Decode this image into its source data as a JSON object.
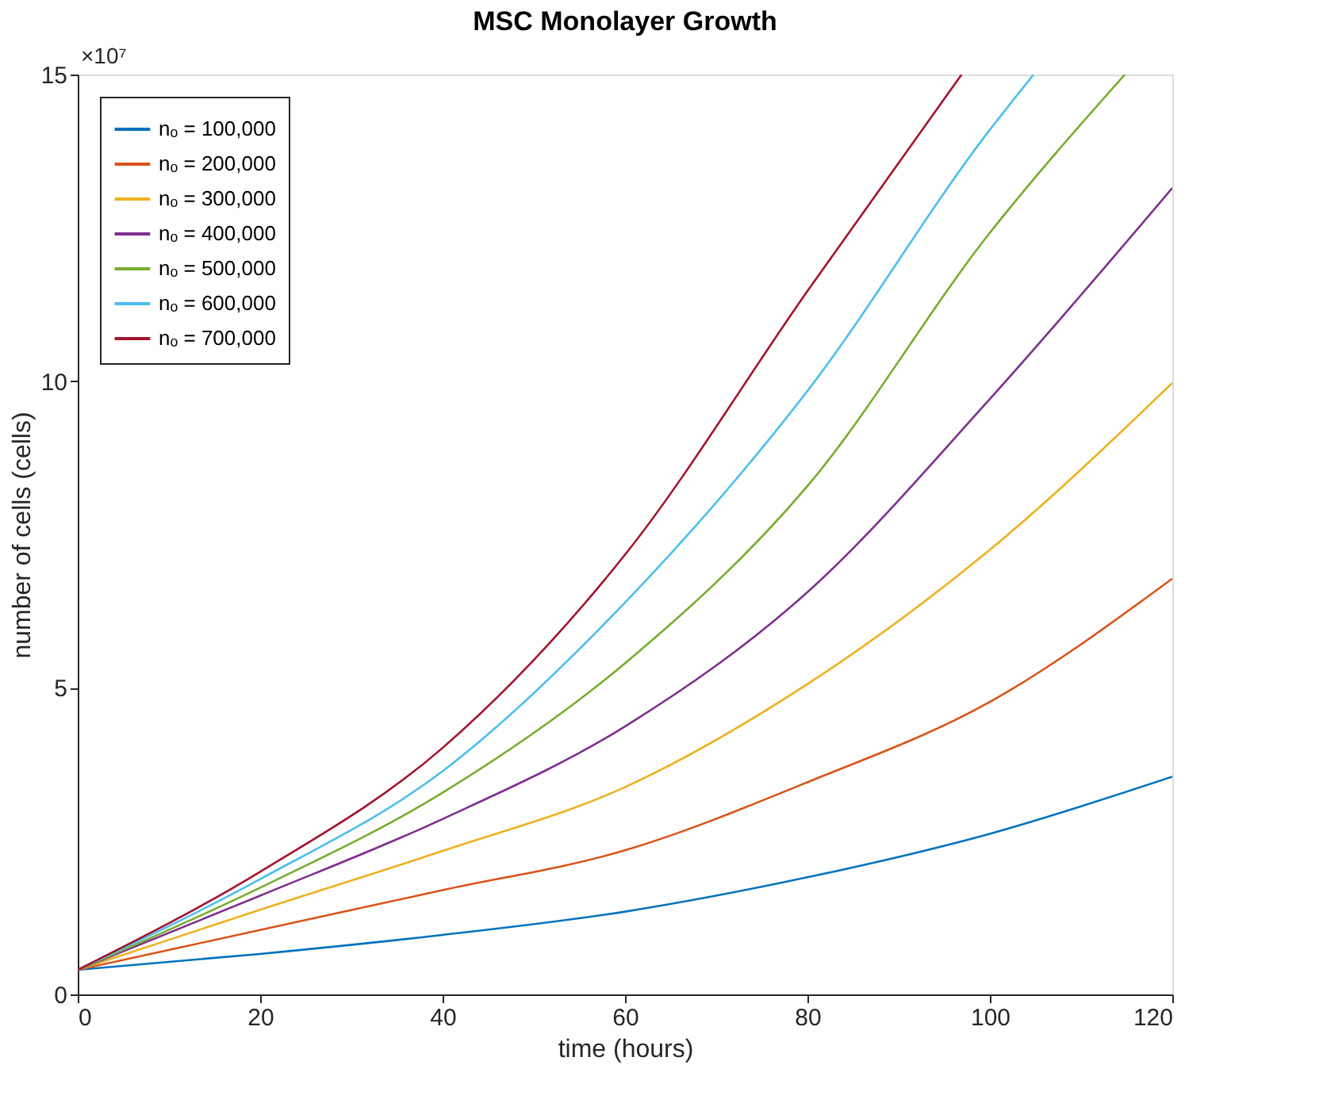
{
  "chart_data": {
    "type": "line",
    "title": "MSC Monolayer Growth",
    "xlabel": "time (hours)",
    "ylabel": "number of cells (cells)",
    "annotations": [
      "×10⁷"
    ],
    "xlim": [
      0,
      120
    ],
    "xticks": [
      0,
      20,
      40,
      60,
      80,
      100,
      120
    ],
    "ylim": [
      0,
      15
    ],
    "yticks": [
      0,
      5,
      10,
      15
    ],
    "grid": false,
    "legend": "top left",
    "marker": "none",
    "line_style": "solid",
    "series": [
      {
        "name": "nₒ = 100,000",
        "color": "#0072bd",
        "x": [
          0,
          20,
          40,
          60,
          80,
          100,
          120
        ],
        "values": [
          0.4,
          0.66,
          0.97,
          1.35,
          1.91,
          2.62,
          3.55
        ]
      },
      {
        "name": "nₒ = 200,000",
        "color": "#d95319",
        "x": [
          0,
          20,
          40,
          60,
          80,
          100,
          120
        ],
        "values": [
          0.4,
          1.05,
          1.7,
          2.35,
          3.46,
          4.77,
          6.78
        ]
      },
      {
        "name": "nₒ = 300,000",
        "color": "#edb120",
        "x": [
          0,
          20,
          40,
          60,
          80,
          100,
          120
        ],
        "values": [
          0.4,
          1.38,
          2.34,
          3.38,
          5.06,
          7.25,
          9.97
        ]
      },
      {
        "name": "nₒ = 400,000",
        "color": "#7e2f8e",
        "x": [
          0,
          20,
          40,
          60,
          80,
          100,
          120
        ],
        "values": [
          0.4,
          1.61,
          2.86,
          4.37,
          6.56,
          9.71,
          13.15
        ]
      },
      {
        "name": "nₒ = 500,000",
        "color": "#77ac30",
        "x": [
          0,
          20,
          40,
          60,
          80,
          100,
          114.8
        ],
        "values": [
          0.4,
          1.74,
          3.29,
          5.4,
          8.29,
          12.42,
          15
        ]
      },
      {
        "name": "nₒ = 600,000",
        "color": "#4dbeee",
        "x": [
          0,
          20,
          40,
          60,
          80,
          100,
          104.8
        ],
        "values": [
          0.4,
          1.88,
          3.64,
          6.39,
          9.84,
          14.1,
          15
        ]
      },
      {
        "name": "nₒ = 700,000",
        "color": "#a2142f",
        "x": [
          0,
          20,
          40,
          60,
          80,
          96.9
        ],
        "values": [
          0.4,
          2.0,
          4.02,
          7.17,
          11.47,
          15
        ]
      }
    ]
  }
}
